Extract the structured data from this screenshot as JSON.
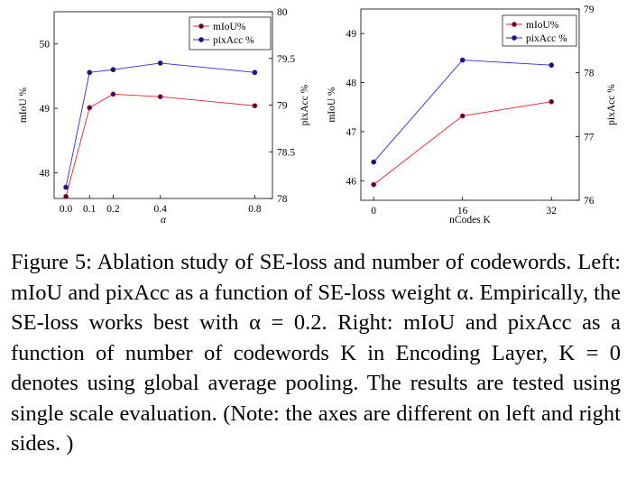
{
  "chart_data": [
    {
      "type": "line",
      "x": [
        0.0,
        0.1,
        0.2,
        0.4,
        0.8
      ],
      "x_tick_labels": [
        "0.0",
        "0.1",
        "0.2",
        "0.4",
        "0.8"
      ],
      "xlabel": "α",
      "xlim": [
        -0.05,
        0.875
      ],
      "ylabel": "mIoU %",
      "ylim": [
        47.6,
        50.5
      ],
      "y_ticks": [
        "48",
        "49",
        "50"
      ],
      "y2label": "pixAcc %",
      "y2lim": [
        78.0,
        80.0
      ],
      "y2_ticks": [
        "78",
        "78.5",
        "79",
        "79.5",
        "80"
      ],
      "legend_position": "top-right",
      "grid": false,
      "series": [
        {
          "name": "mIoU%",
          "axis": "left",
          "color": "#e8242a",
          "values": [
            47.63,
            49.01,
            49.22,
            49.18,
            49.04
          ]
        },
        {
          "name": "pixAcc %",
          "axis": "right",
          "color": "#2b2be8",
          "values": [
            78.12,
            79.35,
            79.38,
            79.45,
            79.35
          ]
        }
      ]
    },
    {
      "type": "line",
      "x": [
        0,
        16,
        32
      ],
      "x_tick_labels": [
        "0",
        "16",
        "32"
      ],
      "xlabel": "nCodes K",
      "xlim": [
        -2.3,
        37.0
      ],
      "ylabel": "mIoU %",
      "ylim": [
        45.6,
        49.5
      ],
      "y_ticks": [
        "46",
        "47",
        "48",
        "49"
      ],
      "y2label": "pixAcc %",
      "y2lim": [
        76.0,
        79.0
      ],
      "y2_ticks": [
        "76",
        "77",
        "78",
        "79"
      ],
      "legend_position": "top-right",
      "grid": false,
      "series": [
        {
          "name": "mIoU%",
          "axis": "left",
          "color": "#e8242a",
          "values": [
            45.92,
            47.32,
            47.61
          ]
        },
        {
          "name": "pixAcc %",
          "axis": "right",
          "color": "#2b2be8",
          "values": [
            76.6,
            78.2,
            78.12
          ]
        }
      ]
    }
  ],
  "caption": "Figure 5: Ablation study of SE-loss and number of codewords. Left: mIoU and pixAcc as a function of SE-loss weight α. Empirically, the SE-loss works best with α = 0.2. Right: mIoU and pixAcc as a function of number of codewords K in Encoding Layer, K = 0 denotes using global average pooling. The results are tested using single scale evaluation. (Note: the axes are different on left and right sides. )",
  "colors": {
    "miou": "#e8242a",
    "pixacc": "#2b2be8",
    "marker": "#3a0a5a"
  }
}
